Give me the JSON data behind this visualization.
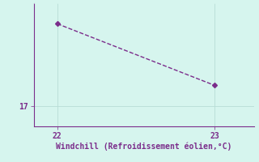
{
  "x": [
    22,
    23
  ],
  "y": [
    21.0,
    18.0
  ],
  "line_color": "#7B2D8B",
  "marker": "D",
  "marker_size": 3,
  "bg_color": "#D6F5EE",
  "grid_color": "#B8DDD5",
  "xlabel": "Windchill (Refroidissement éolien,°C)",
  "xlabel_color": "#7B2D8B",
  "tick_color": "#7B2D8B",
  "xlim": [
    21.85,
    23.25
  ],
  "ylim": [
    16.0,
    22.0
  ],
  "yticks": [
    17
  ],
  "xticks": [
    22,
    23
  ],
  "linestyle": "--",
  "linewidth": 1.0,
  "xlabel_fontsize": 7,
  "tick_fontsize": 7,
  "axis_color": "#7B2D8B",
  "spine_color": "#7B2D8B"
}
